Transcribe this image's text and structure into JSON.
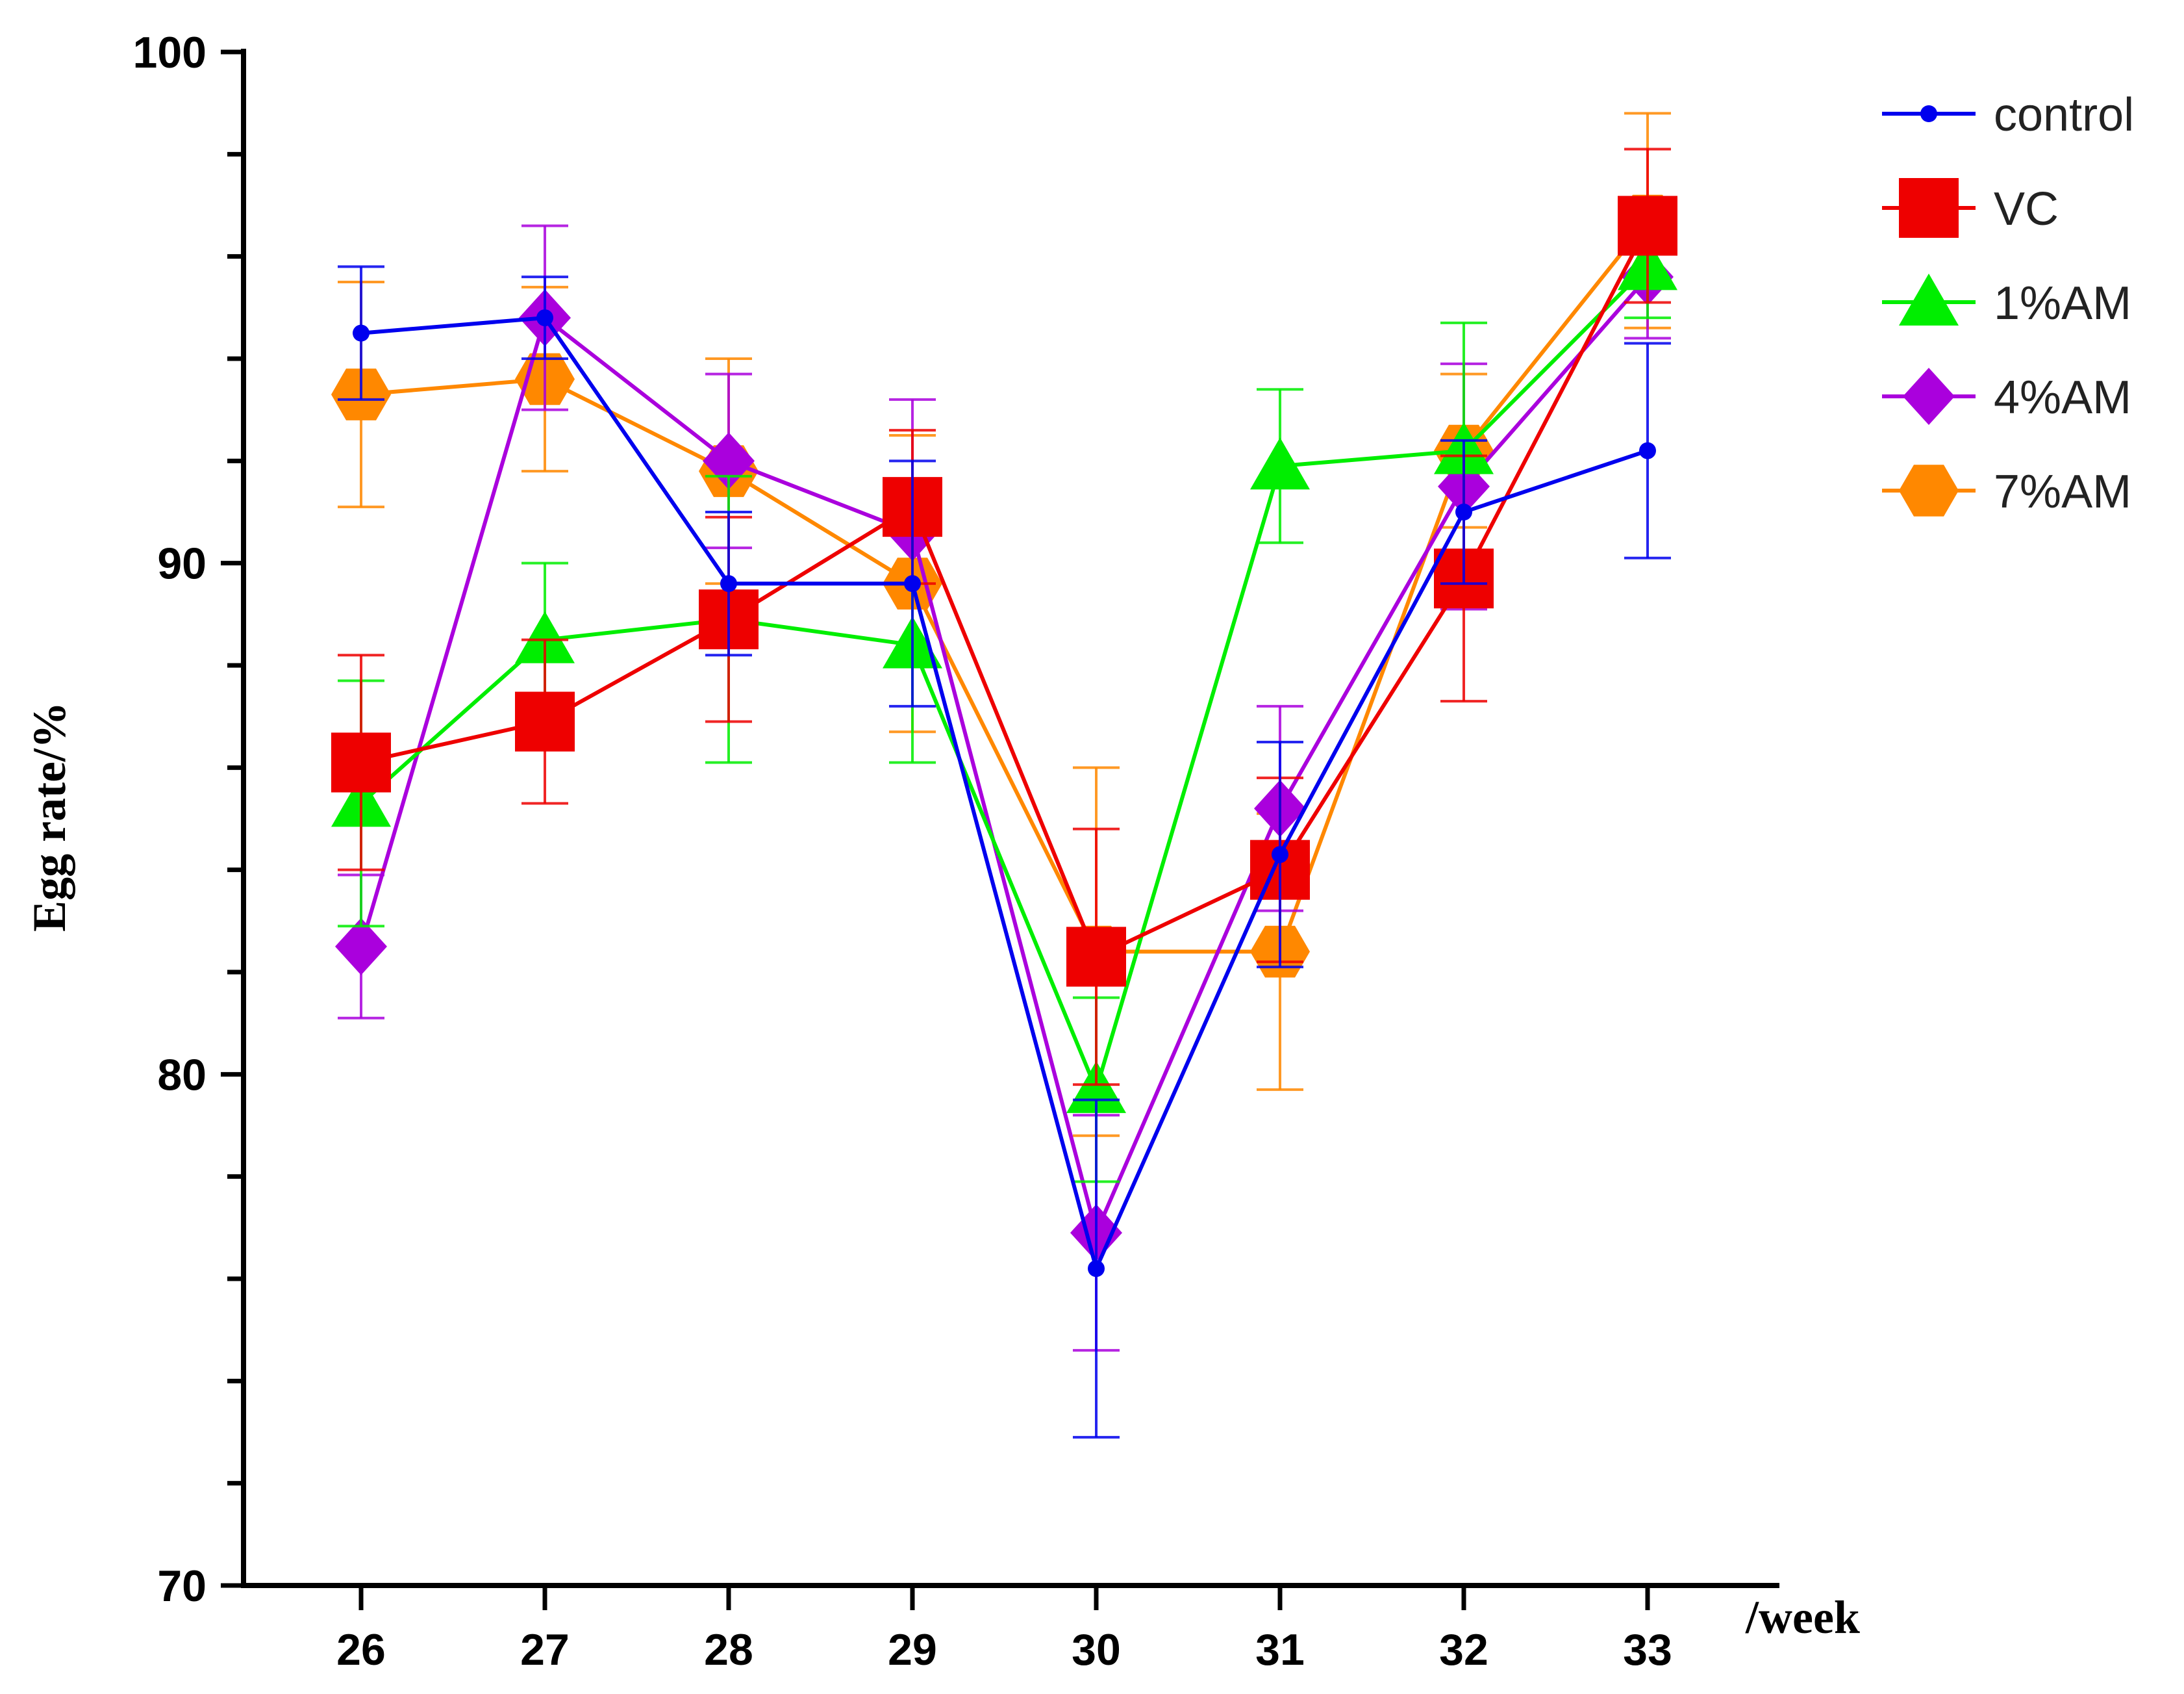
{
  "chart_data": {
    "type": "line",
    "title": "",
    "xlabel": "/week",
    "ylabel": "Egg rate/%",
    "categories": [
      "26",
      "27",
      "28",
      "29",
      "30",
      "31",
      "32",
      "33"
    ],
    "ylim": [
      70,
      100
    ],
    "yticks": [
      "70",
      "80",
      "90",
      "100"
    ],
    "legend_position": "top-right",
    "series": [
      {
        "name": "control",
        "color": "#0000ee",
        "marker": "circle",
        "values": [
          94.5,
          94.8,
          89.6,
          89.6,
          76.2,
          84.3,
          91.0,
          92.2
        ],
        "errors": [
          1.3,
          0.8,
          1.4,
          2.4,
          3.3,
          2.2,
          1.4,
          2.1
        ]
      },
      {
        "name": "VC",
        "color": "#ee0000",
        "marker": "square",
        "values": [
          86.1,
          86.9,
          88.9,
          91.1,
          82.3,
          84.0,
          89.7,
          96.6
        ],
        "errors": [
          2.1,
          1.6,
          2.0,
          1.5,
          2.5,
          1.8,
          2.4,
          1.5
        ]
      },
      {
        "name": "1%AM",
        "color": "#00ee00",
        "marker": "triangle",
        "values": [
          85.3,
          88.5,
          88.9,
          88.4,
          79.7,
          91.9,
          92.2,
          95.8
        ],
        "errors": [
          2.4,
          1.5,
          2.8,
          2.3,
          1.8,
          1.5,
          2.5,
          1.0
        ]
      },
      {
        "name": "4%AM",
        "color": "#aa00dd",
        "marker": "diamond",
        "values": [
          82.5,
          94.8,
          92.0,
          90.6,
          76.9,
          85.2,
          91.5,
          95.6
        ],
        "errors": [
          1.4,
          1.8,
          1.7,
          2.6,
          2.3,
          2.0,
          2.4,
          1.2
        ]
      },
      {
        "name": "7%AM",
        "color": "#ff8800",
        "marker": "hexagon",
        "values": [
          93.3,
          93.6,
          91.8,
          89.6,
          82.4,
          82.4,
          92.2,
          96.7
        ],
        "errors": [
          2.2,
          1.8,
          2.2,
          2.9,
          3.6,
          2.7,
          1.5,
          2.1
        ]
      }
    ]
  }
}
